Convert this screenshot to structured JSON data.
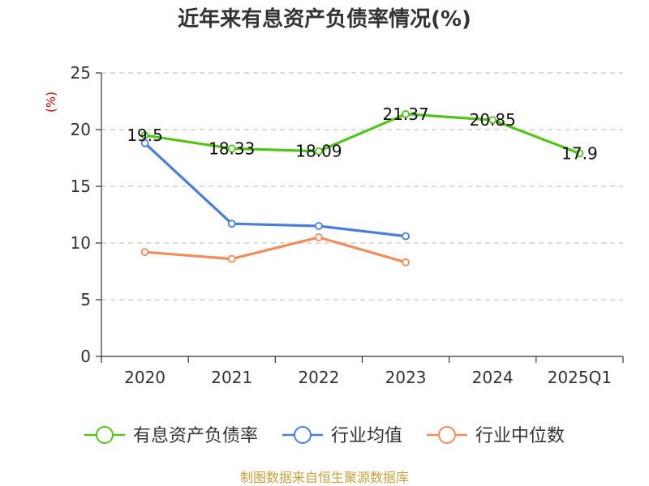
{
  "chart_data": {
    "type": "line",
    "title": "近年来有息资产负债率情况(%)",
    "ylabel": "(%)",
    "xlabel": "",
    "categories": [
      "2020",
      "2021",
      "2022",
      "2023",
      "2024",
      "2025Q1"
    ],
    "ylim": [
      0,
      25
    ],
    "yticks": [
      0,
      5,
      10,
      15,
      20,
      25
    ],
    "grid": true,
    "legend_position": "bottom",
    "series": [
      {
        "name": "有息资产负债率",
        "color": "#52c41a",
        "values": [
          19.5,
          18.33,
          18.09,
          21.37,
          20.85,
          17.9
        ],
        "labels": [
          "19.5",
          "18.33",
          "18.09",
          "21.37",
          "20.85",
          "17.9"
        ]
      },
      {
        "name": "行业均值",
        "color": "#4a7fd9",
        "values": [
          18.8,
          11.7,
          11.5,
          10.6,
          null,
          null
        ]
      },
      {
        "name": "行业中位数",
        "color": "#f28c5a",
        "values": [
          9.2,
          8.6,
          10.5,
          8.3,
          null,
          null
        ]
      }
    ]
  },
  "source": "制图数据来自恒生聚源数据库"
}
